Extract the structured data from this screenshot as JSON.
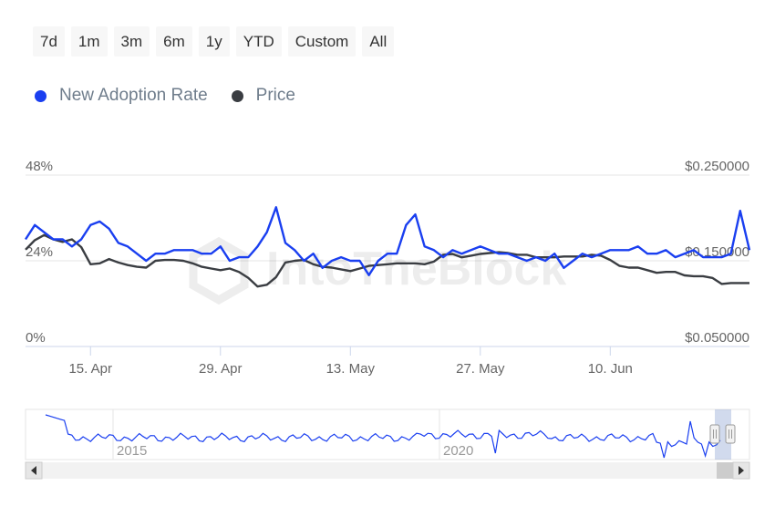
{
  "range_selector": {
    "buttons": [
      "7d",
      "1m",
      "3m",
      "6m",
      "1y",
      "YTD",
      "Custom",
      "All"
    ]
  },
  "legend": {
    "items": [
      {
        "label": "New Adoption Rate",
        "color": "#1a3ff0"
      },
      {
        "label": "Price",
        "color": "#3a3d42"
      }
    ]
  },
  "watermark": "IntoTheBlock",
  "chart_data": {
    "type": "line",
    "x_ticks": [
      "15. Apr",
      "29. Apr",
      "13. May",
      "27. May",
      "10. Jun"
    ],
    "x_start": "2024-04-08",
    "y_left": {
      "ticks": [
        "0%",
        "24%",
        "48%"
      ],
      "range": [
        0,
        48
      ],
      "unit": "%"
    },
    "y_right": {
      "ticks": [
        "$0.050000",
        "$0.150000",
        "$0.250000"
      ],
      "range": [
        0.05,
        0.25
      ]
    },
    "grid": true,
    "legend_position": "top-left",
    "series": [
      {
        "name": "New Adoption Rate",
        "axis": "left",
        "color": "#1a3ff0",
        "values": [
          30,
          34,
          32,
          30,
          30,
          28,
          30,
          34,
          35,
          33,
          29,
          28,
          26,
          24,
          26,
          26,
          27,
          27,
          27,
          26,
          26,
          28,
          24,
          25,
          25,
          28,
          32,
          39,
          29,
          27,
          24,
          26,
          22,
          24,
          25,
          24,
          24,
          20,
          24,
          26,
          26,
          34,
          37,
          28,
          27,
          25,
          27,
          26,
          27,
          28,
          27,
          26,
          26,
          25,
          24,
          25,
          24,
          26,
          22,
          24,
          26,
          25,
          26,
          27,
          27,
          27,
          28,
          26,
          26,
          27,
          25,
          26,
          27,
          25,
          25,
          25,
          26,
          38,
          27
        ]
      },
      {
        "name": "Price",
        "axis": "right",
        "color": "#3a3d42",
        "values": [
          0.163,
          0.174,
          0.18,
          0.175,
          0.172,
          0.175,
          0.166,
          0.146,
          0.147,
          0.152,
          0.148,
          0.145,
          0.143,
          0.142,
          0.15,
          0.151,
          0.151,
          0.15,
          0.147,
          0.143,
          0.141,
          0.139,
          0.141,
          0.137,
          0.13,
          0.12,
          0.122,
          0.131,
          0.148,
          0.15,
          0.151,
          0.146,
          0.143,
          0.142,
          0.14,
          0.138,
          0.141,
          0.144,
          0.145,
          0.146,
          0.147,
          0.147,
          0.147,
          0.146,
          0.149,
          0.157,
          0.158,
          0.154,
          0.156,
          0.158,
          0.159,
          0.16,
          0.159,
          0.157,
          0.157,
          0.154,
          0.154,
          0.154,
          0.155,
          0.155,
          0.155,
          0.157,
          0.156,
          0.151,
          0.144,
          0.142,
          0.142,
          0.139,
          0.136,
          0.137,
          0.137,
          0.133,
          0.132,
          0.132,
          0.13,
          0.123,
          0.124,
          0.124,
          0.124
        ]
      }
    ],
    "navigator": {
      "x_labels": [
        "2015",
        "2020"
      ],
      "series": "New Adoption Rate"
    }
  }
}
